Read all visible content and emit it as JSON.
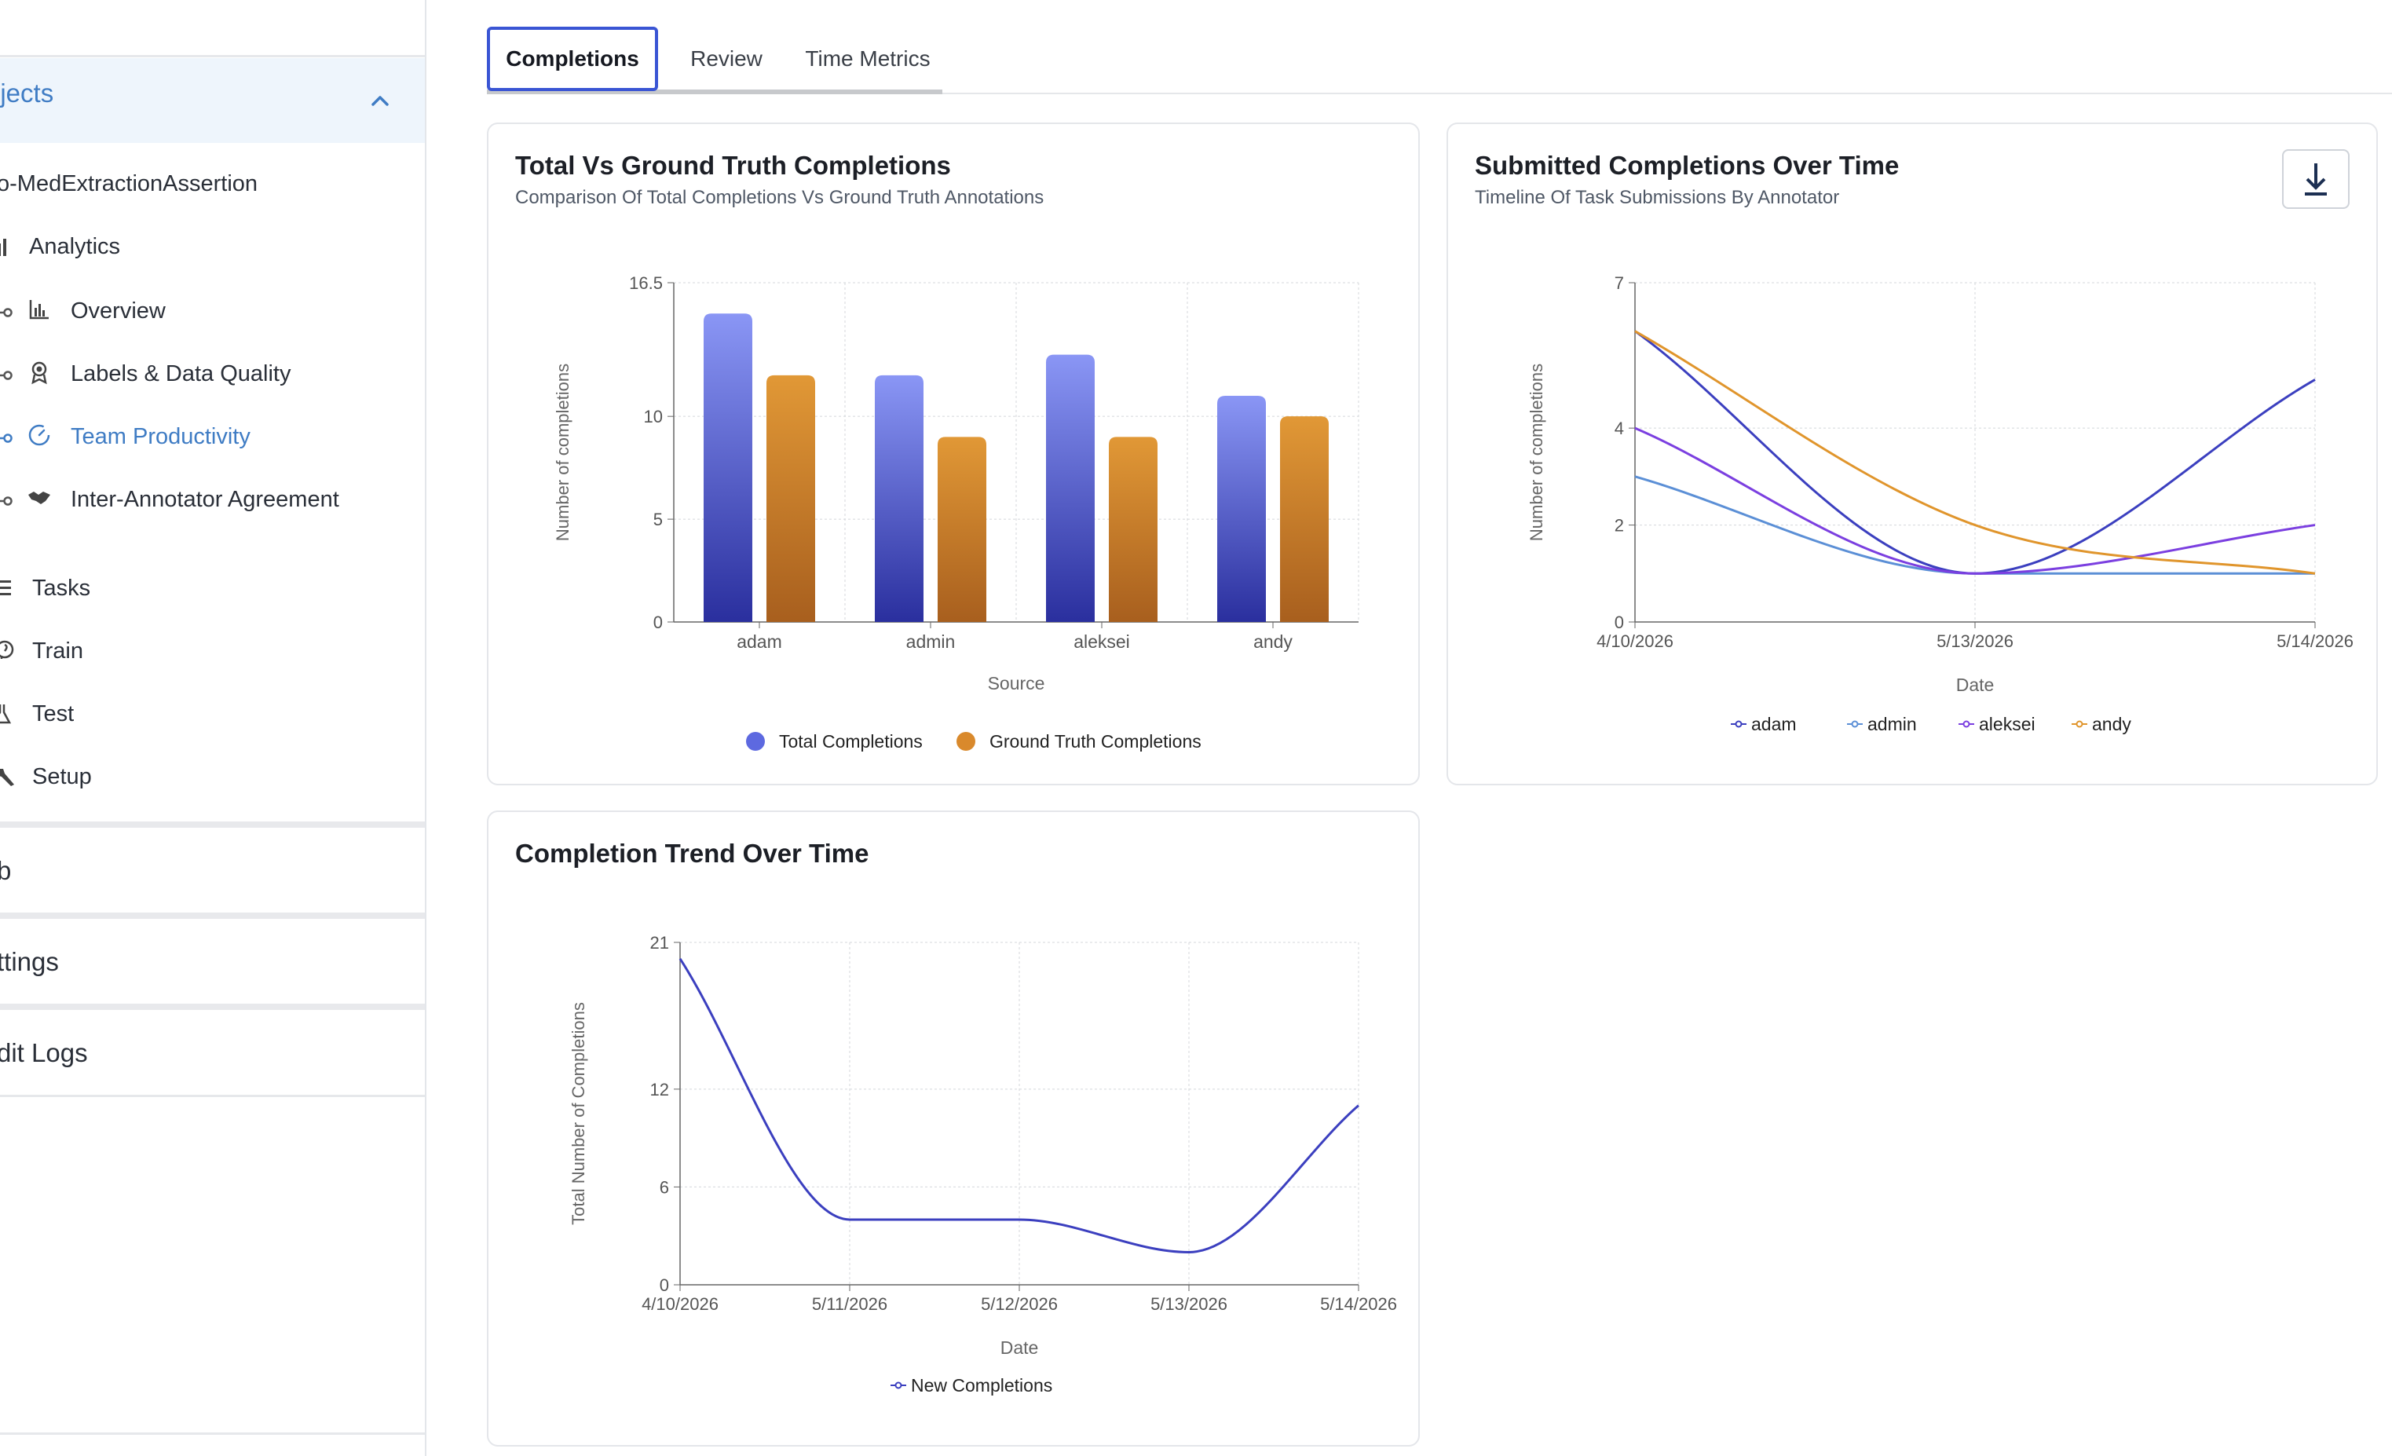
{
  "sidebar": {
    "projects_label": "ojects",
    "project_name": "o-MedExtractionAssertion",
    "analytics": "Analytics",
    "items": [
      {
        "label": "Overview"
      },
      {
        "label": "Labels & Data Quality"
      },
      {
        "label": "Team Productivity"
      },
      {
        "label": "Inter-Annotator Agreement"
      }
    ],
    "tasks": "Tasks",
    "train": "Train",
    "test": "Test",
    "setup": "Setup",
    "hub": "b",
    "settings": "ttings",
    "audit": "dit Logs",
    "colors": {
      "active": "#3f7cc4"
    }
  },
  "tabs": [
    {
      "label": "Completions",
      "active": true
    },
    {
      "label": "Review",
      "active": false
    },
    {
      "label": "Time Metrics",
      "active": false
    }
  ],
  "card1": {
    "title": "Total Vs Ground Truth Completions",
    "subtitle": "Comparison Of Total Completions Vs Ground Truth Annotations"
  },
  "card2": {
    "title": "Submitted Completions Over Time",
    "subtitle": "Timeline Of Task Submissions By Annotator"
  },
  "card3": {
    "title": "Completion Trend Over Time"
  },
  "chart_data": [
    {
      "type": "bar",
      "categories": [
        "adam",
        "admin",
        "aleksei",
        "andy"
      ],
      "series": [
        {
          "name": "Total Completions",
          "values": [
            15,
            12,
            13,
            11
          ],
          "color": "#5d69e0"
        },
        {
          "name": "Ground Truth Completions",
          "values": [
            12,
            9,
            9,
            10
          ],
          "color": "#d9892c"
        }
      ],
      "xlabel": "Source",
      "ylabel": "Number of completions",
      "yticks": [
        0,
        5,
        10,
        16.5
      ],
      "ylim": [
        0,
        16.5
      ],
      "grid": true,
      "legend": "bottom"
    },
    {
      "type": "line",
      "x": [
        "4/10/2026",
        "5/13/2026",
        "5/14/2026"
      ],
      "series": [
        {
          "name": "adam",
          "values": [
            6,
            1,
            5
          ],
          "color": "#3b3fbf"
        },
        {
          "name": "admin",
          "values": [
            3,
            1,
            1
          ],
          "color": "#5b8fd6"
        },
        {
          "name": "aleksei",
          "values": [
            4,
            1,
            2
          ],
          "color": "#7b3fe0"
        },
        {
          "name": "andy",
          "values": [
            6,
            2,
            1
          ],
          "color": "#e0952c"
        }
      ],
      "xlabel": "Date",
      "ylabel": "Number of completions",
      "yticks": [
        0,
        2,
        4,
        7
      ],
      "ylim": [
        0,
        7
      ],
      "grid": true,
      "legend": "bottom"
    },
    {
      "type": "line",
      "x": [
        "4/10/2026",
        "5/11/2026",
        "5/12/2026",
        "5/13/2026",
        "5/14/2026"
      ],
      "series": [
        {
          "name": "New Completions",
          "values": [
            20,
            4,
            4,
            2,
            11
          ],
          "color": "#3b3fbf"
        }
      ],
      "xlabel": "Date",
      "ylabel": "Total Number of Completions",
      "yticks": [
        0,
        6,
        12,
        21
      ],
      "ylim": [
        0,
        21
      ],
      "grid": true,
      "legend": "bottom"
    }
  ]
}
